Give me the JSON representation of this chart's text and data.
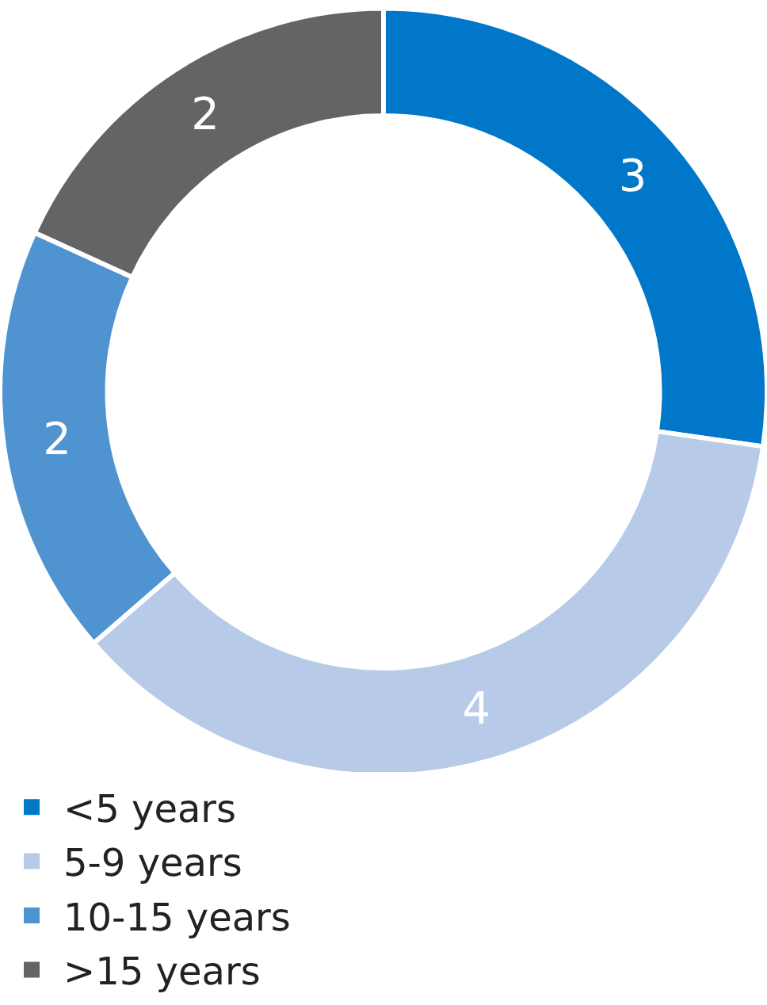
{
  "chart_data": {
    "type": "donut",
    "categories": [
      "<5 years",
      "5-9 years",
      "10-15 years",
      ">15 years"
    ],
    "values": [
      3,
      4,
      2,
      2
    ],
    "colors": [
      "#0077c8",
      "#b7cbe9",
      "#4f93d1",
      "#636466"
    ],
    "data_labels": true,
    "legend": "bottom"
  }
}
